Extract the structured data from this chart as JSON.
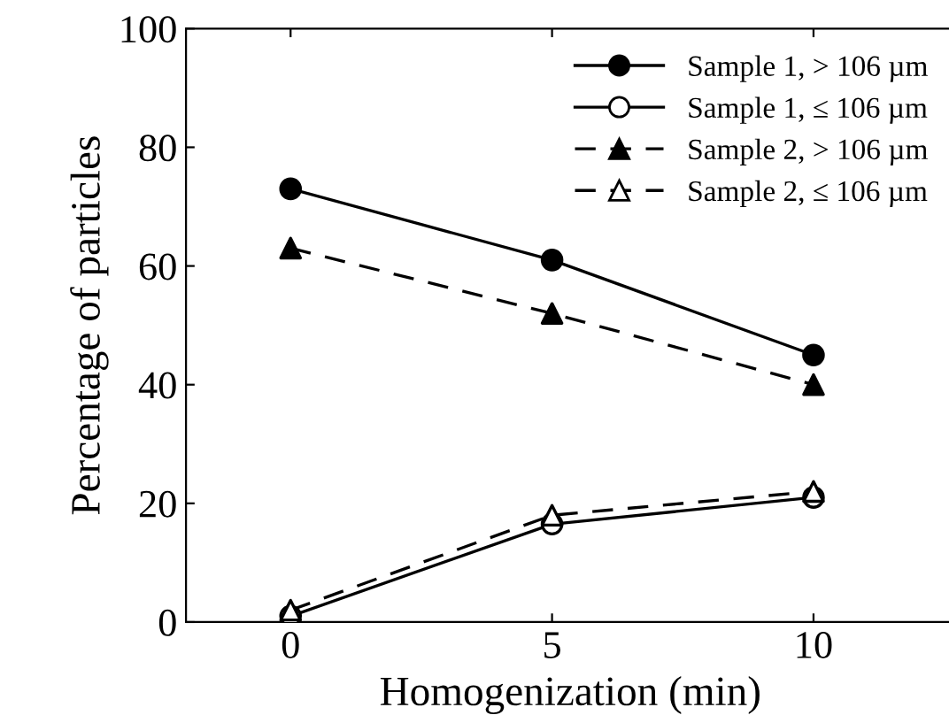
{
  "chart_data": {
    "type": "line",
    "xlabel": "Homogenization (min)",
    "ylabel": "Percentage of particles",
    "x": [
      0,
      5,
      10
    ],
    "xlim": [
      -2,
      12.7
    ],
    "xticks": [
      0,
      5,
      10
    ],
    "ylim": [
      0,
      100
    ],
    "yticks": [
      0,
      20,
      40,
      60,
      80,
      100
    ],
    "grid": false,
    "legend": "top right",
    "series": [
      {
        "name": "Sample 1, > 106 µm",
        "color": "#000000",
        "values": [
          73,
          61,
          45
        ],
        "marker": "circle",
        "colors": [
          "#000000",
          "#000000",
          "#000000"
        ],
        "line_style": "solid"
      },
      {
        "name": "Sample 1, ≤ 106 µm",
        "color": "#000000",
        "values": [
          1,
          16.5,
          21
        ],
        "marker": "circle",
        "colors": [
          "#ffffff",
          "#ffffff",
          "#ffffff"
        ],
        "line_style": "solid"
      },
      {
        "name": "Sample 2, > 106 µm",
        "color": "#000000",
        "values": [
          63,
          52,
          40
        ],
        "marker": "triangle",
        "colors": [
          "#000000",
          "#000000",
          "#000000"
        ],
        "line_style": "dashed"
      },
      {
        "name": "Sample 2, ≤ 106 µm",
        "color": "#000000",
        "values": [
          2,
          18,
          22
        ],
        "marker": "triangle",
        "colors": [
          "#ffffff",
          "#ffffff",
          "#ffffff"
        ],
        "line_style": "dashed"
      }
    ]
  }
}
